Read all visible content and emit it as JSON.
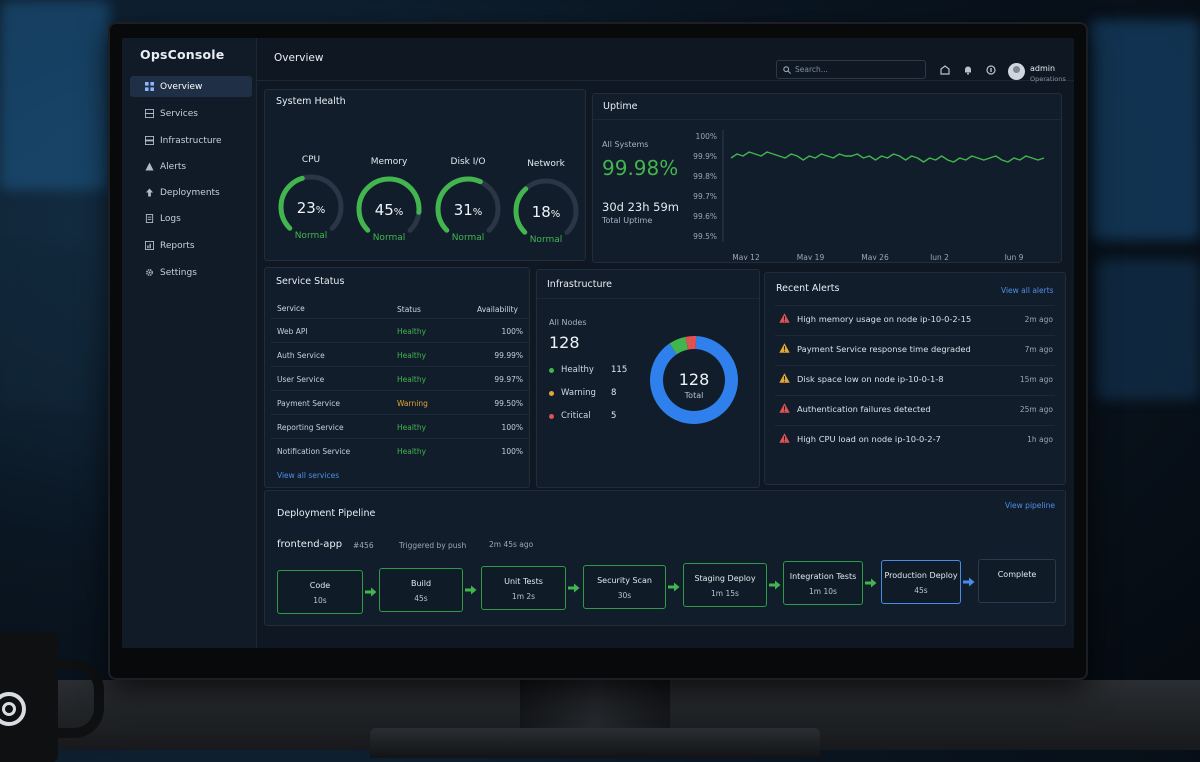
{
  "app": {
    "brand": "OpsConsole",
    "page_title": "Overview"
  },
  "sidebar": {
    "items": [
      {
        "label": "Overview",
        "icon": "grid-icon",
        "active": true
      },
      {
        "label": "Services",
        "icon": "server-icon"
      },
      {
        "label": "Infrastructure",
        "icon": "stack-icon"
      },
      {
        "label": "Alerts",
        "icon": "warning-icon"
      },
      {
        "label": "Deployments",
        "icon": "upload-icon"
      },
      {
        "label": "Logs",
        "icon": "document-icon"
      },
      {
        "label": "Reports",
        "icon": "chart-icon"
      },
      {
        "label": "Settings",
        "icon": "gear-icon"
      }
    ]
  },
  "header": {
    "search_placeholder": "Search...",
    "user_name": "admin",
    "user_role": "Operations"
  },
  "system_health": {
    "title": "System Health",
    "gauges": [
      {
        "label": "CPU",
        "value": "23",
        "unit": "%",
        "percent": 23,
        "status": "Normal"
      },
      {
        "label": "Memory",
        "value": "45",
        "unit": "%",
        "percent": 45,
        "status": "Normal"
      },
      {
        "label": "Disk I/O",
        "value": "31",
        "unit": "%",
        "percent": 31,
        "status": "Normal"
      },
      {
        "label": "Network",
        "value": "18",
        "unit": "%",
        "percent": 18,
        "status": "Normal"
      }
    ]
  },
  "uptime": {
    "title": "Uptime",
    "scope_label": "All Systems",
    "percent": "99.98%",
    "duration": "30d 23h 59m",
    "duration_label": "Total Uptime"
  },
  "chart_data": {
    "type": "line",
    "title": "",
    "xlabel": "",
    "ylabel": "",
    "x_ticks": [
      "May 12",
      "May 19",
      "May 26",
      "Jun 2",
      "Jun 9"
    ],
    "y_ticks": [
      "100%",
      "99.9%",
      "99.8%",
      "99.7%",
      "99.6%",
      "99.5%"
    ],
    "ylim": [
      99.5,
      100
    ],
    "color": "#43b54f",
    "series": [
      {
        "values": [
          99.89,
          99.91,
          99.9,
          99.92,
          99.91,
          99.9,
          99.92,
          99.91,
          99.9,
          99.89,
          99.91,
          99.9,
          99.88,
          99.9,
          99.89,
          99.91,
          99.9,
          99.89,
          99.91,
          99.9,
          99.9,
          99.91,
          99.89,
          99.9,
          99.88,
          99.9,
          99.89,
          99.91,
          99.9,
          99.88,
          99.9,
          99.89,
          99.87,
          99.89,
          99.88,
          99.9,
          99.88,
          99.87,
          99.89,
          99.88,
          99.9,
          99.89,
          99.88,
          99.89,
          99.9,
          99.88,
          99.87,
          99.89,
          99.88,
          99.9,
          99.89,
          99.88,
          99.89
        ]
      }
    ]
  },
  "service_status": {
    "title": "Service Status",
    "columns": [
      "Service",
      "Status",
      "Availability"
    ],
    "rows": [
      {
        "service": "Web API",
        "status": "Healthy",
        "availability": "100%"
      },
      {
        "service": "Auth Service",
        "status": "Healthy",
        "availability": "99.99%"
      },
      {
        "service": "User Service",
        "status": "Healthy",
        "availability": "99.97%"
      },
      {
        "service": "Payment Service",
        "status": "Warning",
        "availability": "99.50%"
      },
      {
        "service": "Reporting Service",
        "status": "Healthy",
        "availability": "100%"
      },
      {
        "service": "Notification Service",
        "status": "Healthy",
        "availability": "100%"
      }
    ],
    "link": "View all services"
  },
  "infrastructure": {
    "title": "Infrastructure",
    "nodes_label": "All Nodes",
    "nodes_total": "128",
    "donut_value": "128",
    "donut_label": "Total",
    "legend": [
      {
        "label": "Healthy",
        "count": "115",
        "value": 115,
        "color": "#2f80ed"
      },
      {
        "label": "Warning",
        "count": "8",
        "value": 8,
        "color": "#43b54f"
      },
      {
        "label": "Critical",
        "count": "5",
        "value": 5,
        "color": "#e05252"
      }
    ]
  },
  "recent_alerts": {
    "title": "Recent Alerts",
    "link": "View all alerts",
    "items": [
      {
        "severity": "critical",
        "text": "High memory usage on node ip-10-0-2-15",
        "time": "2m ago"
      },
      {
        "severity": "warning",
        "text": "Payment Service response time degraded",
        "time": "7m ago"
      },
      {
        "severity": "warning",
        "text": "Disk space low on node ip-10-0-1-8",
        "time": "15m ago"
      },
      {
        "severity": "critical",
        "text": "Authentication failures detected",
        "time": "25m ago"
      },
      {
        "severity": "critical",
        "text": "High CPU load on node ip-10-0-2-7",
        "time": "1h ago"
      }
    ]
  },
  "pipeline": {
    "title": "Deployment Pipeline",
    "link": "View pipeline",
    "app_name": "frontend-app",
    "run_id": "#456",
    "trigger": "Triggered by push",
    "elapsed": "2m 45s ago",
    "stages": [
      {
        "name": "Code",
        "duration": "10s",
        "state": "done"
      },
      {
        "name": "Build",
        "duration": "45s",
        "state": "done"
      },
      {
        "name": "Unit Tests",
        "duration": "1m 2s",
        "state": "done"
      },
      {
        "name": "Security Scan",
        "duration": "30s",
        "state": "done"
      },
      {
        "name": "Staging Deploy",
        "duration": "1m 15s",
        "state": "done"
      },
      {
        "name": "Integration Tests",
        "duration": "1m 10s",
        "state": "done"
      },
      {
        "name": "Production Deploy",
        "duration": "45s",
        "state": "active"
      },
      {
        "name": "Complete",
        "duration": "",
        "state": "pending"
      }
    ]
  }
}
